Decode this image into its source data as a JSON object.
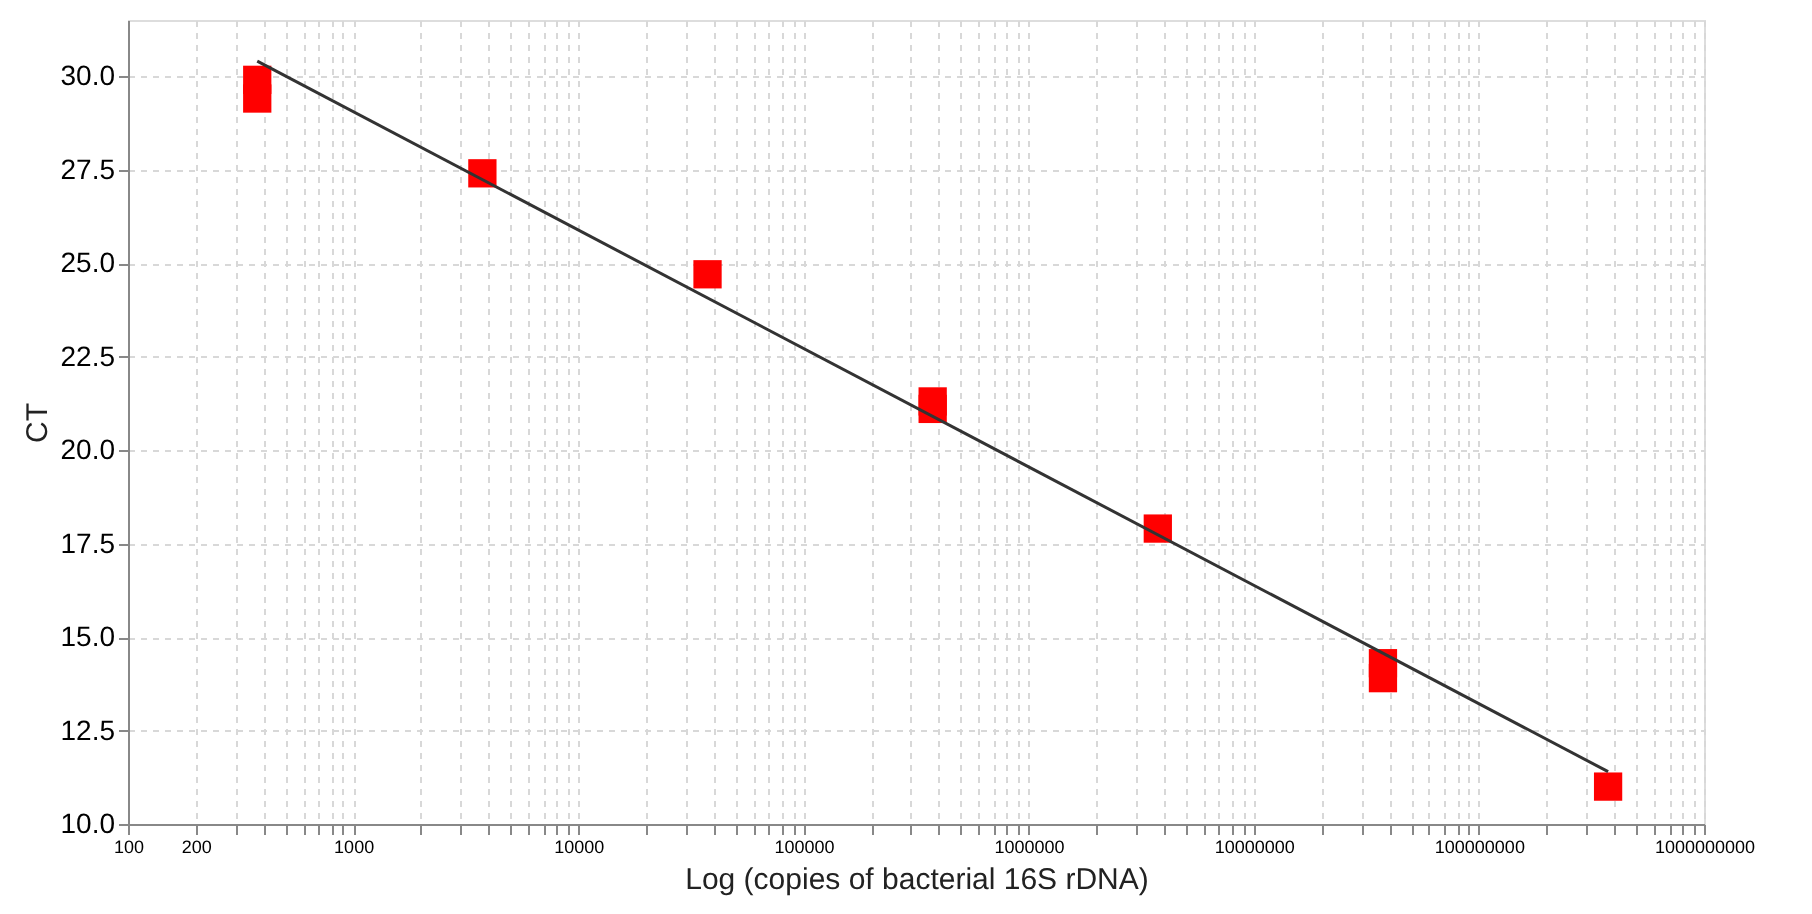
{
  "chart_data": {
    "type": "scatter",
    "xlabel": "Log (copies of bacterial 16S rDNA)",
    "ylabel": "CT",
    "log": "x",
    "grid": true,
    "xlim": [
      100,
      1000000000
    ],
    "ylim": [
      10,
      31.5
    ],
    "xticks": [
      100,
      200,
      {
        "value": 300,
        "label": null
      },
      {
        "value": 400,
        "label": null
      },
      {
        "value": 500,
        "label": null
      },
      {
        "value": 600,
        "label": null
      },
      {
        "value": 700,
        "label": null
      },
      {
        "value": 800,
        "label": null
      },
      {
        "value": 900,
        "label": null
      },
      1000,
      {
        "value": 2000,
        "label": null
      },
      {
        "value": 3000,
        "label": null
      },
      {
        "value": 4000,
        "label": null
      },
      {
        "value": 5000,
        "label": null
      },
      {
        "value": 6000,
        "label": null
      },
      {
        "value": 7000,
        "label": null
      },
      {
        "value": 8000,
        "label": null
      },
      {
        "value": 9000,
        "label": null
      },
      10000,
      {
        "value": 20000,
        "label": null
      },
      {
        "value": 30000,
        "label": null
      },
      {
        "value": 40000,
        "label": null
      },
      {
        "value": 50000,
        "label": null
      },
      {
        "value": 60000,
        "label": null
      },
      {
        "value": 70000,
        "label": null
      },
      {
        "value": 80000,
        "label": null
      },
      {
        "value": 90000,
        "label": null
      },
      100000,
      {
        "value": 200000,
        "label": null
      },
      {
        "value": 300000,
        "label": null
      },
      {
        "value": 400000,
        "label": null
      },
      {
        "value": 500000,
        "label": null
      },
      {
        "value": 600000,
        "label": null
      },
      {
        "value": 700000,
        "label": null
      },
      {
        "value": 800000,
        "label": null
      },
      {
        "value": 900000,
        "label": null
      },
      1000000,
      {
        "value": 2000000,
        "label": null
      },
      {
        "value": 3000000,
        "label": null
      },
      {
        "value": 4000000,
        "label": null
      },
      {
        "value": 5000000,
        "label": null
      },
      {
        "value": 6000000,
        "label": null
      },
      {
        "value": 7000000,
        "label": null
      },
      {
        "value": 8000000,
        "label": null
      },
      {
        "value": 9000000,
        "label": null
      },
      10000000,
      {
        "value": 20000000,
        "label": null
      },
      {
        "value": 30000000,
        "label": null
      },
      {
        "value": 40000000,
        "label": null
      },
      {
        "value": 50000000,
        "label": null
      },
      {
        "value": 60000000,
        "label": null
      },
      {
        "value": 70000000,
        "label": null
      },
      {
        "value": 80000000,
        "label": null
      },
      {
        "value": 90000000,
        "label": null
      },
      100000000,
      {
        "value": 200000000,
        "label": null
      },
      {
        "value": 300000000,
        "label": null
      },
      {
        "value": 400000000,
        "label": null
      },
      {
        "value": 500000000,
        "label": null
      },
      {
        "value": 600000000,
        "label": null
      },
      {
        "value": 700000000,
        "label": null
      },
      {
        "value": 800000000,
        "label": null
      },
      {
        "value": 900000000,
        "label": null
      },
      1000000000
    ],
    "yticks": [
      {
        "value": 10,
        "label": "10.0"
      },
      12.5,
      {
        "value": 15,
        "label": "15.0"
      },
      17.5,
      {
        "value": 20,
        "label": "20.0"
      },
      22.5,
      {
        "value": 25,
        "label": "25.0"
      },
      27.5,
      {
        "value": 30,
        "label": "30.0"
      }
    ],
    "series": [
      {
        "marker": "square",
        "color": "#ff0000",
        "x": [
          375,
          375,
          3750,
          37500,
          375000,
          375000,
          3750000,
          37500000,
          37500000,
          375000000
        ],
        "values": [
          29.9,
          29.4,
          27.4,
          24.7,
          21.3,
          21.1,
          17.9,
          14.3,
          13.9,
          11.0
        ]
      },
      {
        "type": "line",
        "color": "#333333",
        "x": [
          375,
          375000000
        ],
        "values": [
          30.4,
          11.4
        ]
      }
    ]
  }
}
